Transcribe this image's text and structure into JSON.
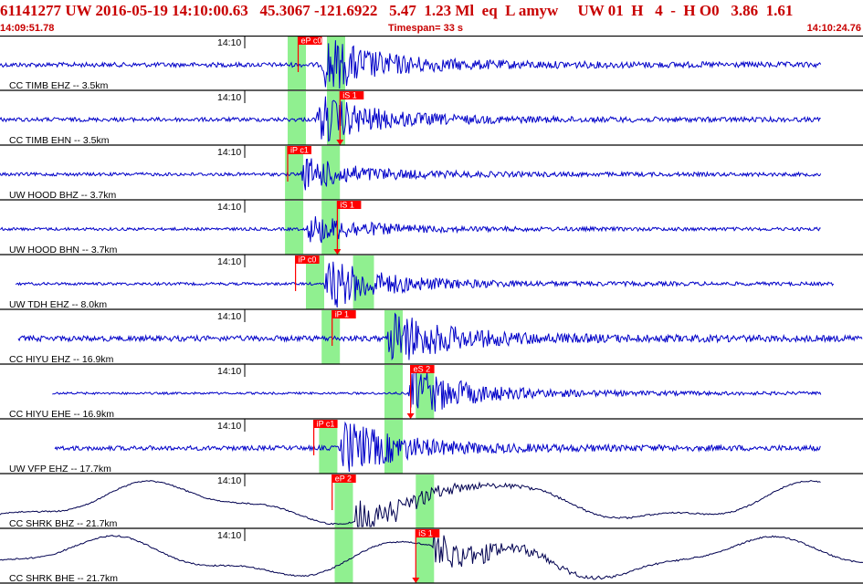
{
  "header": {
    "event_id": "61141277",
    "network": "UW",
    "datetime": "2016-05-19 14:10:00.63",
    "lat": "45.3067",
    "lon": "-121.6922",
    "depth": "5.47",
    "magnitude": "1.23 Ml",
    "event_type": "eq",
    "review": "L",
    "analyst": "amyw",
    "source": "UW 01",
    "quality": "H",
    "phases": "4",
    "dash": "-",
    "origin": "H O0",
    "v1": "3.86",
    "v2": "1.61"
  },
  "subheader": {
    "start_time": "14:09:51.78",
    "timespan": "Timespan=  33 s",
    "end_time": "14:10:24.76"
  },
  "colors": {
    "header_text": "#c80000",
    "trace": "#0000c8",
    "trace_lp": "#000050",
    "pick_flag": "#ff0000",
    "pick_window": "#90f090"
  },
  "traces": [
    {
      "label": "CC TIMB EHZ -- 3.5km",
      "time_tick": "14:10",
      "pick": "eP c0",
      "pick_kind": "P",
      "pick_sec": 11.4,
      "green": [
        11.0,
        11.7,
        12.5,
        13.2
      ],
      "start": 0.0,
      "end": 31.4,
      "onset": 12.3,
      "amp": 30,
      "noise": 2.5,
      "type": "hf"
    },
    {
      "label": "CC TIMB EHN -- 3.5km",
      "time_tick": "14:10",
      "pick": "iS 1",
      "pick_kind": "S",
      "pick_sec": 13.0,
      "green": [
        11.0,
        11.7,
        12.5,
        13.2
      ],
      "start": 0.0,
      "end": 31.4,
      "onset": 12.1,
      "amp": 26,
      "noise": 2.2,
      "type": "hf"
    },
    {
      "label": "UW HOOD BHZ -- 3.7km",
      "time_tick": "14:10",
      "pick": "iP c1",
      "pick_kind": "P",
      "pick_sec": 11.0,
      "green": [
        10.9,
        11.6,
        12.3,
        13.0
      ],
      "start": 0.0,
      "end": 31.4,
      "onset": 11.5,
      "amp": 18,
      "noise": 1.8,
      "type": "hf"
    },
    {
      "label": "UW HOOD BHN -- 3.7km",
      "time_tick": "14:10",
      "pick": "iS 1",
      "pick_kind": "S",
      "pick_sec": 12.9,
      "green": [
        10.9,
        11.6,
        12.3,
        13.0
      ],
      "start": 0.0,
      "end": 31.4,
      "onset": 11.7,
      "amp": 16,
      "noise": 1.6,
      "type": "hf"
    },
    {
      "label": "UW TDH EHZ -- 8.0km",
      "time_tick": "14:10",
      "pick": "iP c0",
      "pick_kind": "P",
      "pick_sec": 11.3,
      "green": [
        11.7,
        12.4,
        13.5,
        14.3
      ],
      "start": 0.6,
      "end": 31.9,
      "onset": 12.4,
      "amp": 28,
      "noise": 1.5,
      "type": "hf"
    },
    {
      "label": "CC HIYU EHZ -- 16.9km",
      "time_tick": "14:10",
      "pick": "iP 1",
      "pick_kind": "P",
      "pick_sec": 12.7,
      "green": [
        12.3,
        13.0,
        14.7,
        15.4
      ],
      "start": 0.7,
      "end": 33.0,
      "onset": 14.8,
      "amp": 30,
      "noise": 3.0,
      "type": "hf"
    },
    {
      "label": "CC HIYU EHE -- 16.9km",
      "time_tick": "14:10",
      "pick": "eS 2",
      "pick_kind": "S",
      "pick_sec": 15.7,
      "green": [
        14.7,
        15.4,
        15.9,
        16.6
      ],
      "start": 2.0,
      "end": 31.4,
      "onset": 15.6,
      "amp": 28,
      "noise": 1.2,
      "type": "hf"
    },
    {
      "label": "UW VFP EHZ -- 17.7km",
      "time_tick": "14:10",
      "pick": "iP c1",
      "pick_kind": "P",
      "pick_sec": 12.0,
      "green": [
        12.2,
        12.9,
        14.7,
        15.4
      ],
      "start": 2.1,
      "end": 31.4,
      "onset": 13.0,
      "amp": 30,
      "noise": 2.5,
      "type": "hf"
    },
    {
      "label": "CC SHRK BHZ -- 21.7km",
      "time_tick": "14:10",
      "pick": "eP 2",
      "pick_kind": "P",
      "pick_sec": 12.7,
      "green": [
        12.8,
        13.5,
        15.9,
        16.6
      ],
      "start": 0.0,
      "end": 31.4,
      "onset": 13.6,
      "amp": 26,
      "noise": 0,
      "type": "lp"
    },
    {
      "label": "CC SHRK BHE -- 21.7km",
      "time_tick": "14:10",
      "pick": "iS 1",
      "pick_kind": "S",
      "pick_sec": 15.9,
      "green": [
        12.8,
        13.5,
        15.9,
        16.6
      ],
      "start": 0.0,
      "end": 33.0,
      "onset": 16.5,
      "amp": 24,
      "noise": 0,
      "type": "lp"
    }
  ]
}
